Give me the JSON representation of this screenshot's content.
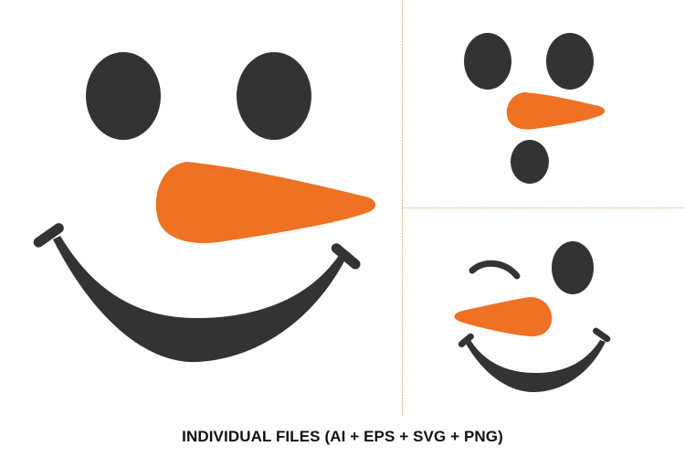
{
  "caption": "INDIVIDUAL FILES (AI + EPS + SVG + PNG)",
  "colors": {
    "face_dark": "#333335",
    "nose_orange": "#EE7124",
    "divider": "#F0A070",
    "background": "#FFFFFF"
  },
  "faces": [
    {
      "name": "smiling face",
      "features": [
        "eye",
        "eye",
        "carrot-nose",
        "smile"
      ]
    },
    {
      "name": "buttons face",
      "features": [
        "eye",
        "eye",
        "carrot-nose",
        "button"
      ]
    },
    {
      "name": "winking face",
      "features": [
        "winking-eye",
        "eye",
        "carrot-nose",
        "smile"
      ]
    }
  ]
}
